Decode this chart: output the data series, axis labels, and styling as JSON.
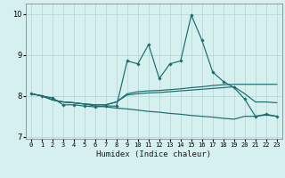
{
  "title": "",
  "xlabel": "Humidex (Indice chaleur)",
  "ylabel": "",
  "xlim": [
    -0.5,
    23.5
  ],
  "ylim": [
    6.95,
    10.25
  ],
  "yticks": [
    7,
    8,
    9,
    10
  ],
  "xticks": [
    0,
    1,
    2,
    3,
    4,
    5,
    6,
    7,
    8,
    9,
    10,
    11,
    12,
    13,
    14,
    15,
    16,
    17,
    18,
    19,
    20,
    21,
    22,
    23
  ],
  "bg_color": "#d6f0f0",
  "grid_color": "#b8d8d8",
  "line_color": "#1a6b6b",
  "line1_x": [
    0,
    1,
    2,
    3,
    4,
    5,
    6,
    7,
    8,
    9,
    10,
    11,
    12,
    13,
    14,
    15,
    16,
    17,
    18,
    19,
    20,
    21,
    22,
    23
  ],
  "line1_y": [
    8.05,
    8.0,
    7.95,
    7.78,
    7.78,
    7.75,
    7.73,
    7.75,
    7.75,
    8.85,
    8.78,
    9.25,
    8.42,
    8.78,
    8.85,
    9.97,
    9.35,
    8.58,
    8.35,
    8.2,
    7.92,
    7.5,
    7.55,
    7.5
  ],
  "line2_x": [
    0,
    1,
    2,
    3,
    4,
    5,
    6,
    7,
    8,
    9,
    10,
    11,
    12,
    13,
    14,
    15,
    16,
    17,
    18,
    19,
    20,
    21,
    22,
    23
  ],
  "line2_y": [
    8.05,
    8.0,
    7.9,
    7.85,
    7.83,
    7.8,
    7.78,
    7.78,
    7.85,
    8.05,
    8.1,
    8.12,
    8.13,
    8.15,
    8.17,
    8.2,
    8.22,
    8.25,
    8.27,
    8.28,
    8.28,
    8.28,
    8.28,
    8.28
  ],
  "line3_x": [
    0,
    1,
    2,
    3,
    4,
    5,
    6,
    7,
    8,
    9,
    10,
    11,
    12,
    13,
    14,
    15,
    16,
    17,
    18,
    19,
    20,
    21,
    22,
    23
  ],
  "line3_y": [
    8.05,
    8.0,
    7.9,
    7.85,
    7.83,
    7.8,
    7.78,
    7.78,
    7.85,
    8.02,
    8.05,
    8.07,
    8.08,
    8.1,
    8.12,
    8.14,
    8.16,
    8.18,
    8.2,
    8.22,
    8.05,
    7.85,
    7.85,
    7.83
  ],
  "line4_x": [
    0,
    1,
    2,
    3,
    4,
    5,
    6,
    7,
    8,
    9,
    10,
    11,
    12,
    13,
    14,
    15,
    16,
    17,
    18,
    19,
    20,
    21,
    22,
    23
  ],
  "line4_y": [
    8.05,
    8.0,
    7.9,
    7.85,
    7.83,
    7.8,
    7.75,
    7.73,
    7.7,
    7.68,
    7.65,
    7.62,
    7.6,
    7.57,
    7.55,
    7.52,
    7.5,
    7.48,
    7.45,
    7.43,
    7.5,
    7.5,
    7.53,
    7.5
  ]
}
